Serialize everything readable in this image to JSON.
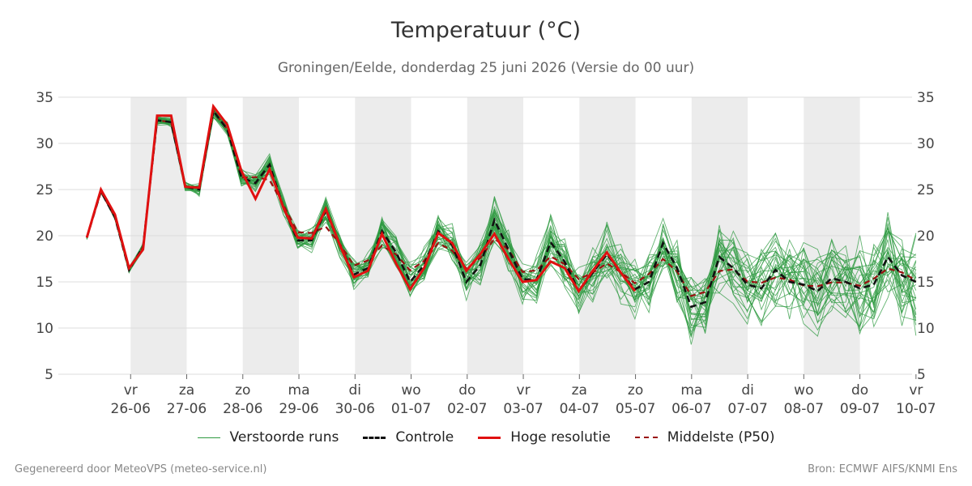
{
  "header": {
    "title": "Temperatuur (°C)",
    "subtitle": "Groningen/Eelde, donderdag 25 juni 2026 (Versie do 00 uur)"
  },
  "footer": {
    "left": "Gegenereerd door MeteoVPS (meteo-service.nl)",
    "right": "Bron: ECMWF AIFS/KNMI Ens"
  },
  "colors": {
    "ensemble": "#2e9a40",
    "control": "#111111",
    "high_res": "#e01010",
    "median": "#9a1010",
    "shade": "#ececec",
    "grid": "#dddddd"
  },
  "legend": [
    {
      "key": "ensemble",
      "label": "Verstoorde runs",
      "style": "thin"
    },
    {
      "key": "control",
      "label": "Controle",
      "style": "dashed"
    },
    {
      "key": "high_res",
      "label": "Hoge resolutie",
      "style": "solid"
    },
    {
      "key": "median",
      "label": "Middelste (P50)",
      "style": "dashed"
    }
  ],
  "chart_data": {
    "type": "line",
    "ylim": [
      5,
      35
    ],
    "yticks": [
      5,
      10,
      15,
      20,
      25,
      30,
      35
    ],
    "x_range_days": [
      0,
      15
    ],
    "grid": true,
    "legend_position": "bottom",
    "x_ticks": [
      {
        "day": "vr",
        "date": "26-06"
      },
      {
        "day": "za",
        "date": "27-06"
      },
      {
        "day": "zo",
        "date": "28-06"
      },
      {
        "day": "ma",
        "date": "29-06"
      },
      {
        "day": "di",
        "date": "30-06"
      },
      {
        "day": "wo",
        "date": "01-07"
      },
      {
        "day": "do",
        "date": "02-07"
      },
      {
        "day": "vr",
        "date": "03-07"
      },
      {
        "day": "za",
        "date": "04-07"
      },
      {
        "day": "zo",
        "date": "05-07"
      },
      {
        "day": "ma",
        "date": "06-07"
      },
      {
        "day": "di",
        "date": "07-07"
      },
      {
        "day": "wo",
        "date": "08-07"
      },
      {
        "day": "do",
        "date": "09-07"
      },
      {
        "day": "vr",
        "date": "10-07"
      }
    ],
    "shaded_days": [
      "26-06",
      "28-06",
      "30-06",
      "02-07",
      "04-07",
      "06-07",
      "08-07"
    ],
    "control": [
      19.8,
      24.8,
      22.0,
      16.3,
      18.8,
      32.5,
      32.3,
      25.3,
      25.0,
      33.5,
      31.5,
      26.3,
      25.7,
      27.7,
      23.0,
      19.5,
      19.5,
      22.7,
      19.0,
      15.8,
      16.5,
      20.5,
      18.2,
      15.0,
      16.8,
      20.5,
      19.0,
      15.0,
      16.8,
      21.7,
      18.5,
      15.3,
      15.2,
      19.3,
      17.2,
      14.0,
      16.0,
      18.0,
      16.0,
      14.2,
      15.0,
      19.2,
      16.5,
      12.3,
      12.8,
      17.7,
      16.5,
      14.7,
      14.3,
      16.3,
      15.0,
      14.7,
      14.0,
      15.4,
      15.0,
      14.3,
      14.7,
      17.7,
      15.7,
      15.0
    ],
    "high_res": [
      19.8,
      25.0,
      22.3,
      16.5,
      18.5,
      33.0,
      33.0,
      25.3,
      25.2,
      34.0,
      32.0,
      27.0,
      24.0,
      27.2,
      23.0,
      19.8,
      19.7,
      22.9,
      19.0,
      15.5,
      16.2,
      20.2,
      17.0,
      14.2,
      16.5,
      20.3,
      19.2,
      16.2,
      18.0,
      20.2,
      17.5,
      15.0,
      15.2,
      17.2,
      16.5,
      14.0,
      16.2,
      18.2,
      16.0,
      14.0
    ]
  }
}
